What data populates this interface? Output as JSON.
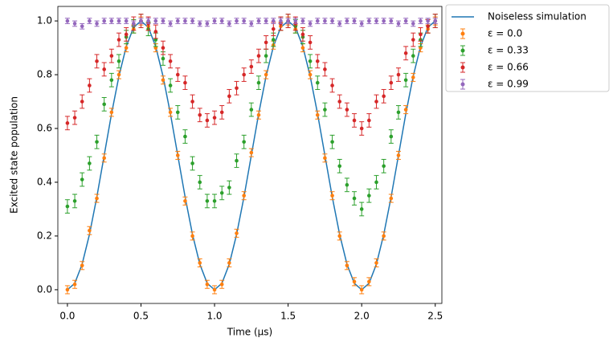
{
  "chart_data": {
    "type": "line",
    "xlabel": "Time (µs)",
    "ylabel": "Excited state population",
    "x": [
      0,
      0.05,
      0.1,
      0.15,
      0.2,
      0.25,
      0.3,
      0.35,
      0.4,
      0.45,
      0.5,
      0.55,
      0.6,
      0.65,
      0.7,
      0.75,
      0.8,
      0.85,
      0.9,
      0.95,
      1.0,
      1.05,
      1.1,
      1.15,
      1.2,
      1.25,
      1.3,
      1.35,
      1.4,
      1.45,
      1.5,
      1.55,
      1.6,
      1.65,
      1.7,
      1.75,
      1.8,
      1.85,
      1.9,
      1.95,
      2.0,
      2.05,
      2.1,
      2.15,
      2.2,
      2.25,
      2.3,
      2.35,
      2.4,
      2.45,
      2.5
    ],
    "series": [
      {
        "name": "Noiseless simulation",
        "color": "#1f77b4",
        "values": [
          0,
          0.024,
          0.095,
          0.206,
          0.345,
          0.5,
          0.655,
          0.794,
          0.905,
          0.976,
          1,
          0.976,
          0.905,
          0.794,
          0.655,
          0.5,
          0.345,
          0.206,
          0.095,
          0.024,
          0,
          0.024,
          0.095,
          0.206,
          0.345,
          0.5,
          0.655,
          0.794,
          0.905,
          0.976,
          1,
          0.976,
          0.905,
          0.794,
          0.655,
          0.5,
          0.345,
          0.206,
          0.095,
          0.024,
          0,
          0.024,
          0.095,
          0.206,
          0.345,
          0.5,
          0.655,
          0.794,
          0.905,
          0.976,
          1
        ]
      },
      {
        "name": "ε = 0.0",
        "color": "#ff7f0e",
        "error": 0.015,
        "values": [
          0,
          0.02,
          0.09,
          0.22,
          0.34,
          0.49,
          0.66,
          0.8,
          0.9,
          0.97,
          1,
          0.98,
          0.9,
          0.78,
          0.66,
          0.5,
          0.33,
          0.2,
          0.1,
          0.02,
          0,
          0.02,
          0.1,
          0.21,
          0.35,
          0.51,
          0.65,
          0.8,
          0.91,
          0.98,
          1,
          0.97,
          0.9,
          0.8,
          0.65,
          0.49,
          0.35,
          0.2,
          0.09,
          0.03,
          0,
          0.03,
          0.1,
          0.2,
          0.34,
          0.5,
          0.67,
          0.79,
          0.9,
          0.97,
          1
        ]
      },
      {
        "name": "ε = 0.33",
        "color": "#2ca02c",
        "error": 0.025,
        "values": [
          0.31,
          0.33,
          0.41,
          0.47,
          0.55,
          0.69,
          0.78,
          0.85,
          0.94,
          0.98,
          1,
          0.97,
          0.93,
          0.86,
          0.76,
          0.66,
          0.57,
          0.47,
          0.4,
          0.33,
          0.33,
          0.36,
          0.38,
          0.48,
          0.55,
          0.67,
          0.77,
          0.87,
          0.93,
          0.99,
          1,
          0.98,
          0.94,
          0.85,
          0.77,
          0.67,
          0.55,
          0.46,
          0.39,
          0.34,
          0.3,
          0.35,
          0.4,
          0.46,
          0.57,
          0.66,
          0.78,
          0.87,
          0.93,
          0.98,
          1
        ]
      },
      {
        "name": "ε = 0.66",
        "color": "#d62728",
        "error": 0.025,
        "values": [
          0.62,
          0.64,
          0.7,
          0.76,
          0.85,
          0.82,
          0.87,
          0.93,
          0.95,
          0.99,
          1,
          0.99,
          0.96,
          0.9,
          0.85,
          0.8,
          0.77,
          0.7,
          0.65,
          0.63,
          0.64,
          0.66,
          0.72,
          0.75,
          0.8,
          0.83,
          0.87,
          0.92,
          0.97,
          0.99,
          1,
          0.99,
          0.95,
          0.92,
          0.85,
          0.82,
          0.76,
          0.7,
          0.67,
          0.63,
          0.6,
          0.63,
          0.7,
          0.72,
          0.77,
          0.8,
          0.88,
          0.93,
          0.95,
          0.98,
          1
        ]
      },
      {
        "name": "ε = 0.99",
        "color": "#9467bd",
        "error": 0.01,
        "values": [
          1,
          0.99,
          0.98,
          1,
          0.99,
          1,
          1,
          1,
          1,
          0.99,
          1,
          1,
          1,
          1,
          0.99,
          1,
          1,
          1,
          0.99,
          0.99,
          1,
          1,
          0.99,
          1,
          1,
          0.99,
          1,
          1,
          1,
          1,
          1,
          1,
          1,
          0.99,
          1,
          1,
          1,
          0.99,
          1,
          1,
          0.99,
          1,
          1,
          1,
          1,
          0.99,
          1,
          0.99,
          1,
          1,
          1
        ]
      }
    ],
    "xlim": [
      -0.065,
      2.545
    ],
    "xticks": [
      {
        "value": 0,
        "label": "0.0"
      },
      {
        "value": 0.5,
        "label": "0.5"
      },
      {
        "value": 1,
        "label": "1.0"
      },
      {
        "value": 1.5,
        "label": "1.5"
      },
      {
        "value": 2,
        "label": "2.0"
      },
      {
        "value": 2.5,
        "label": "2.5"
      }
    ],
    "ylim": [
      -0.051,
      1.054
    ],
    "yticks": [
      {
        "value": 0,
        "label": "0.0"
      },
      {
        "value": 0.2,
        "label": "0.2"
      },
      {
        "value": 0.4,
        "label": "0.4"
      },
      {
        "value": 0.6,
        "label": "0.6"
      },
      {
        "value": 0.8,
        "label": "0.8"
      },
      {
        "value": 1,
        "label": "1.0"
      }
    ],
    "legend": "outside-upper-right"
  }
}
